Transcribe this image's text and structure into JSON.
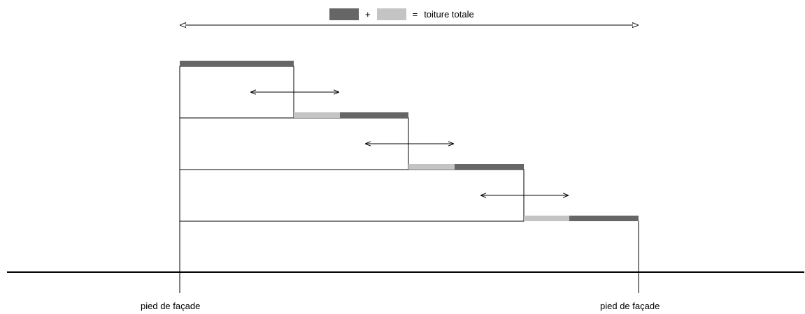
{
  "legend": {
    "dark_color": "#666666",
    "light_color": "#c4c4c4",
    "plus": "+",
    "equals": "=",
    "label": "toiture totale"
  },
  "labels": {
    "left_foot": "pied de façade",
    "right_foot": "pied de façade"
  }
}
